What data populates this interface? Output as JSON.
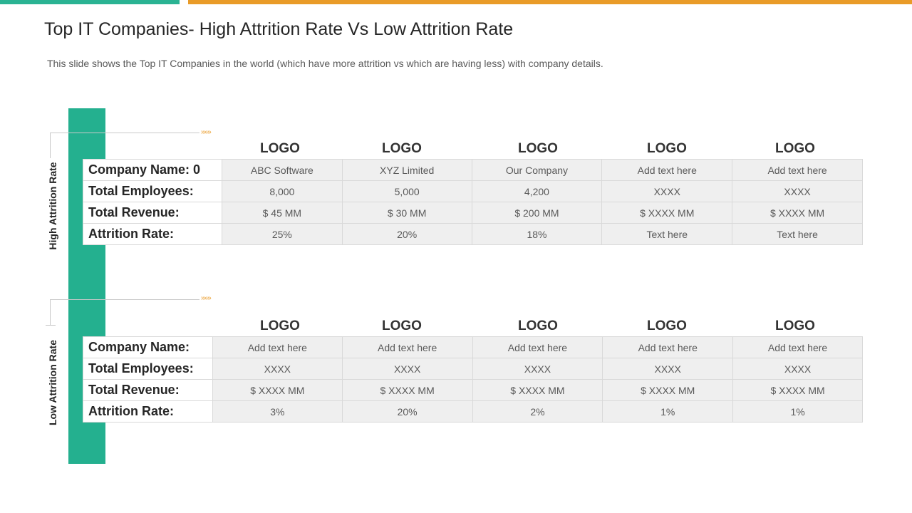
{
  "header": {
    "title": "Top IT Companies- High Attrition Rate Vs Low Attrition Rate",
    "subtitle": "This slide shows the Top IT Companies in the world (which have more attrition vs which are having less) with company details."
  },
  "colors": {
    "teal": "#24b08f",
    "orange": "#e99b28",
    "cell_bg": "#efefef"
  },
  "decor": {
    "arrow_glyph": "»»»"
  },
  "high": {
    "side_label": "High Attrition  Rate",
    "logos": [
      "LOGO",
      "LOGO",
      "LOGO",
      "LOGO",
      "LOGO"
    ],
    "row_labels": [
      "Company Name: 0",
      "Total Employees:",
      "Total Revenue:",
      "Attrition Rate:"
    ],
    "rows": [
      [
        "ABC Software",
        "XYZ  Limited",
        "Our Company",
        "Add text here",
        "Add text here"
      ],
      [
        "8,000",
        "5,000",
        "4,200",
        "XXXX",
        "XXXX"
      ],
      [
        "$ 45 MM",
        "$ 30 MM",
        "$ 200 MM",
        "$ XXXX MM",
        "$ XXXX MM"
      ],
      [
        "25%",
        "20%",
        "18%",
        "Text here",
        "Text here"
      ]
    ]
  },
  "low": {
    "side_label": "Low Attrition  Rate",
    "logos": [
      "LOGO",
      "LOGO",
      "LOGO",
      "LOGO",
      "LOGO"
    ],
    "row_labels": [
      "Company Name:",
      "Total Employees:",
      "Total Revenue:",
      "Attrition Rate:"
    ],
    "rows": [
      [
        "Add text here",
        "Add text here",
        "Add text here",
        "Add text here",
        "Add text here"
      ],
      [
        "XXXX",
        "XXXX",
        "XXXX",
        "XXXX",
        "XXXX"
      ],
      [
        "$ XXXX MM",
        "$ XXXX MM",
        "$ XXXX MM",
        "$ XXXX MM",
        "$ XXXX MM"
      ],
      [
        "3%",
        "20%",
        "2%",
        "1%",
        "1%"
      ]
    ]
  }
}
